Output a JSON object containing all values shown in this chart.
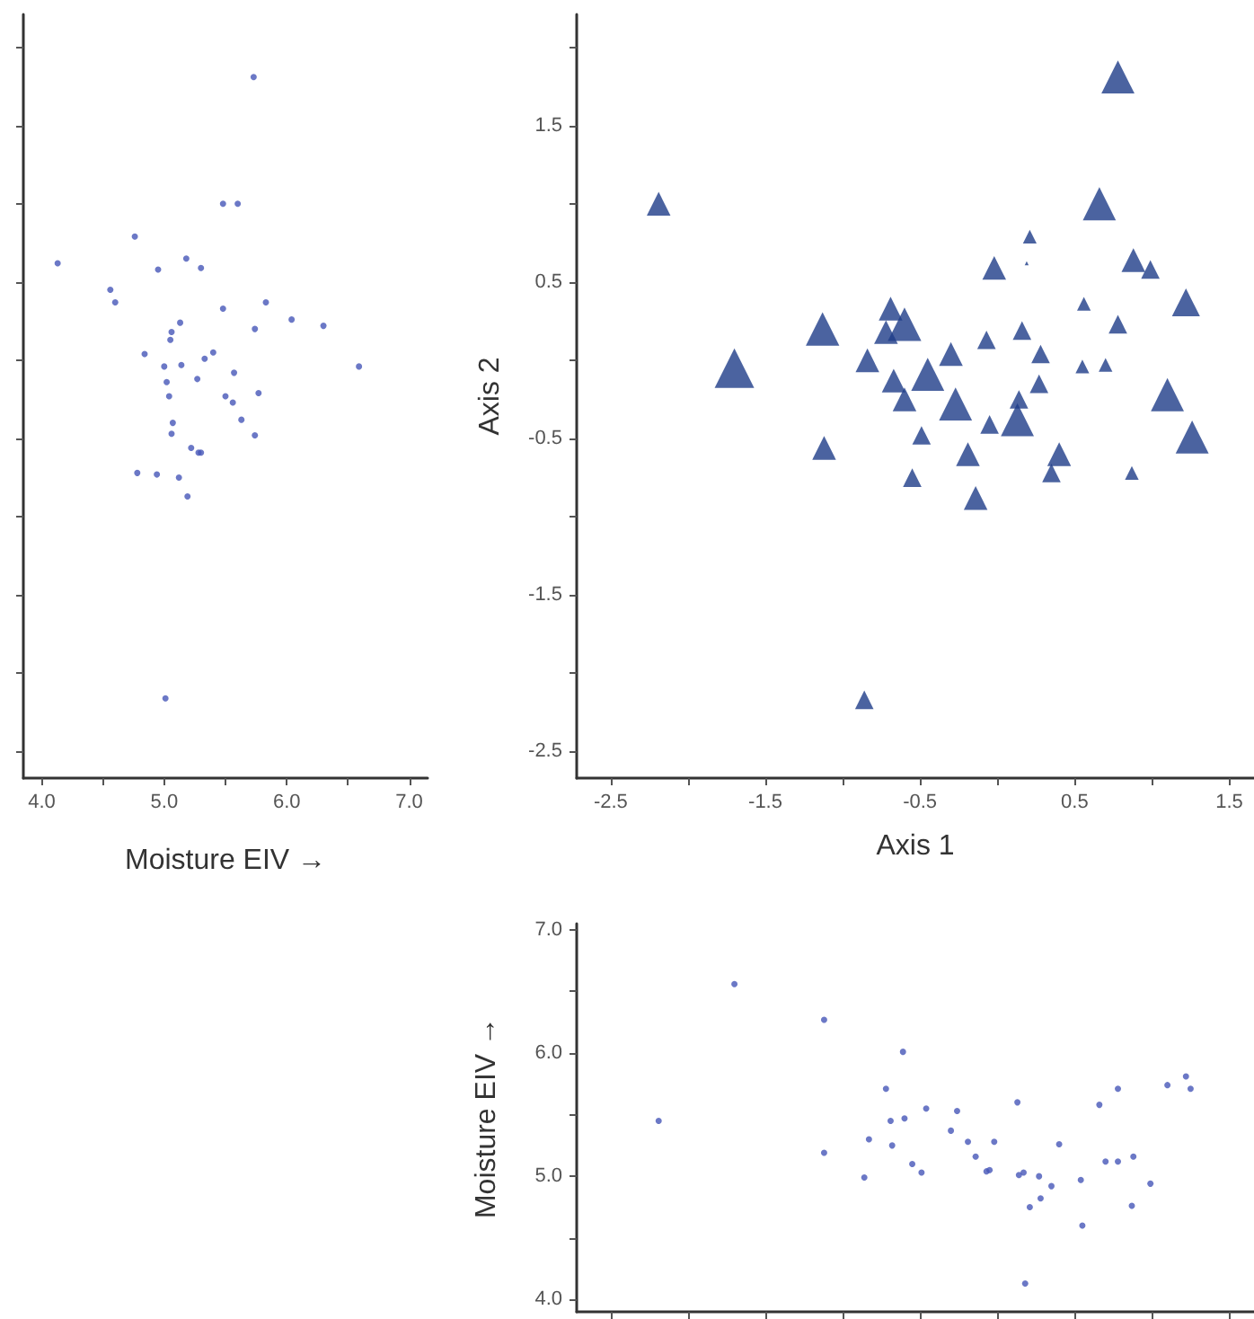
{
  "chart_data": [
    {
      "type": "scatter",
      "xlabel": "Moisture EIV →",
      "marker": "circle",
      "color": "#4656b8",
      "tick_labels": "x",
      "xlim": [
        3.85,
        7.15
      ],
      "xticks": [
        {
          "value": 4,
          "label": "4.0"
        },
        {
          "value": 4.5,
          "label": null
        },
        {
          "value": 5,
          "label": "5.0"
        },
        {
          "value": 5.5,
          "label": null
        },
        {
          "value": 6,
          "label": "6.0"
        },
        {
          "value": 6.5,
          "label": null
        },
        {
          "value": 7,
          "label": "7.0"
        }
      ],
      "ylim": [
        -2.67,
        2.21
      ],
      "yticks": [
        {
          "value": -2.5,
          "label": null
        },
        {
          "value": -2,
          "label": null
        },
        {
          "value": -1.5,
          "label": null
        },
        {
          "value": -1,
          "label": null
        },
        {
          "value": -0.5,
          "label": null
        },
        {
          "value": 0,
          "label": null
        },
        {
          "value": 0.5,
          "label": null
        },
        {
          "value": 1,
          "label": null
        },
        {
          "value": 1.5,
          "label": null
        },
        {
          "value": 2,
          "label": null
        }
      ],
      "x": [
        5.73,
        5.48,
        5.6,
        4.76,
        4.13,
        4.95,
        5.18,
        5.3,
        4.56,
        4.6,
        5.48,
        5.83,
        6.04,
        6.3,
        5.74,
        5.13,
        5.06,
        5.05,
        4.84,
        5.4,
        5.33,
        5.0,
        5.14,
        6.59,
        5.57,
        5.27,
        5.02,
        5.04,
        5.5,
        5.77,
        5.56,
        5.63,
        5.07,
        5.06,
        5.74,
        5.22,
        5.28,
        5.3,
        4.78,
        4.94,
        5.12,
        5.19,
        5.01
      ],
      "values": [
        1.81,
        1.0,
        1.0,
        0.79,
        0.62,
        0.58,
        0.65,
        0.59,
        0.45,
        0.37,
        0.33,
        0.37,
        0.26,
        0.22,
        0.2,
        0.24,
        0.18,
        0.13,
        0.04,
        0.05,
        0.01,
        -0.04,
        -0.03,
        -0.04,
        -0.08,
        -0.12,
        -0.14,
        -0.23,
        -0.23,
        -0.21,
        -0.27,
        -0.38,
        -0.4,
        -0.47,
        -0.48,
        -0.56,
        -0.59,
        -0.59,
        -0.72,
        -0.73,
        -0.75,
        -0.87,
        -2.16
      ]
    },
    {
      "type": "bubble",
      "xlabel": "Axis 1",
      "ylabel": "Axis 2",
      "marker": "triangle",
      "color": "#1e3c88",
      "xlim": [
        -2.72,
        1.66
      ],
      "xticks": [
        -2.5,
        {
          "value": -2,
          "label": null
        },
        -1.5,
        {
          "value": -1,
          "label": null
        },
        -0.5,
        {
          "value": 0,
          "label": null
        },
        0.5,
        {
          "value": 1,
          "label": null
        },
        1.5
      ],
      "ylim": [
        -2.67,
        2.21
      ],
      "yticks": [
        -2.5,
        {
          "value": -2,
          "label": null
        },
        -1.5,
        {
          "value": -1,
          "label": null
        },
        -0.5,
        {
          "value": 0,
          "label": null
        },
        0.5,
        {
          "value": 1,
          "label": null
        },
        1.5,
        {
          "value": 2,
          "label": null
        }
      ],
      "x": [
        0.78,
        -2.19,
        0.66,
        0.21,
        0.19,
        -0.02,
        0.88,
        0.99,
        1.22,
        0.56,
        0.78,
        -1.13,
        -0.69,
        -0.6,
        -0.72,
        -1.7,
        -0.84,
        -0.67,
        -0.45,
        -0.6,
        -0.3,
        -0.07,
        0.16,
        0.28,
        -0.27,
        0.14,
        0.27,
        0.55,
        0.7,
        1.1,
        -0.05,
        0.13,
        1.26,
        -1.12,
        -0.49,
        -0.19,
        0.4,
        -0.55,
        0.35,
        0.87,
        -0.14,
        -0.86
      ],
      "values": [
        1.81,
        1.0,
        1.0,
        0.79,
        0.62,
        0.59,
        0.64,
        0.58,
        0.37,
        0.36,
        0.23,
        0.2,
        0.33,
        0.23,
        0.18,
        -0.05,
        0.0,
        -0.13,
        -0.09,
        -0.25,
        0.04,
        0.13,
        0.19,
        0.04,
        -0.28,
        -0.25,
        -0.15,
        -0.04,
        -0.03,
        -0.22,
        -0.41,
        -0.38,
        -0.49,
        -0.56,
        -0.48,
        -0.6,
        -0.6,
        -0.75,
        -0.72,
        -0.72,
        -0.88,
        -2.17
      ],
      "sizes": [
        0.7,
        0.36,
        0.7,
        0.12,
        0.01,
        0.36,
        0.36,
        0.22,
        0.5,
        0.12,
        0.22,
        0.72,
        0.36,
        0.72,
        0.36,
        1,
        0.36,
        0.36,
        0.7,
        0.36,
        0.36,
        0.22,
        0.22,
        0.22,
        0.7,
        0.22,
        0.22,
        0.12,
        0.12,
        0.7,
        0.22,
        0.7,
        0.7,
        0.36,
        0.22,
        0.36,
        0.36,
        0.22,
        0.22,
        0.12,
        0.36,
        0.22
      ]
    },
    {
      "type": "scatter",
      "ylabel": "Moisture EIV →",
      "marker": "circle",
      "color": "#4656b8",
      "tick_labels": "y",
      "xlim": [
        -2.72,
        1.66
      ],
      "xticks": [
        {
          "value": -2.5,
          "label": null
        },
        {
          "value": -2,
          "label": null
        },
        {
          "value": -1.5,
          "label": null
        },
        {
          "value": -1,
          "label": null
        },
        {
          "value": -0.5,
          "label": null
        },
        {
          "value": 0,
          "label": null
        },
        {
          "value": 0.5,
          "label": null
        },
        {
          "value": 1,
          "label": null
        },
        {
          "value": 1.5,
          "label": null
        }
      ],
      "ylim": [
        3.9,
        7.05
      ],
      "yticks": [
        {
          "value": 4,
          "label": "4.0"
        },
        {
          "value": 4.5,
          "label": null
        },
        {
          "value": 5,
          "label": "5.0"
        },
        {
          "value": 5.5,
          "label": null
        },
        {
          "value": 6,
          "label": "6.0"
        },
        {
          "value": 6.5,
          "label": null
        },
        {
          "value": 7,
          "label": "7.0"
        }
      ],
      "x": [
        -2.19,
        -1.7,
        -1.12,
        -1.12,
        -0.86,
        -0.72,
        -0.83,
        -0.69,
        -0.68,
        -0.61,
        -0.6,
        -0.55,
        -0.49,
        -0.46,
        -0.3,
        -0.26,
        -0.19,
        -0.14,
        -0.07,
        -0.05,
        -0.02,
        0.13,
        0.14,
        0.17,
        0.18,
        0.21,
        0.27,
        0.28,
        0.35,
        0.4,
        0.54,
        0.55,
        0.66,
        0.7,
        0.78,
        0.78,
        0.87,
        0.88,
        0.99,
        1.1,
        1.22,
        1.25
      ],
      "values": [
        5.45,
        6.56,
        6.27,
        5.19,
        4.99,
        5.71,
        5.3,
        5.45,
        5.25,
        6.01,
        5.47,
        5.1,
        5.03,
        5.55,
        5.37,
        5.53,
        5.28,
        5.16,
        5.04,
        5.05,
        5.28,
        5.6,
        5.01,
        5.03,
        4.13,
        4.75,
        5.0,
        4.82,
        4.92,
        5.26,
        4.97,
        4.6,
        5.58,
        5.12,
        5.71,
        5.12,
        4.76,
        5.16,
        4.94,
        5.74,
        5.81,
        5.71
      ]
    }
  ]
}
